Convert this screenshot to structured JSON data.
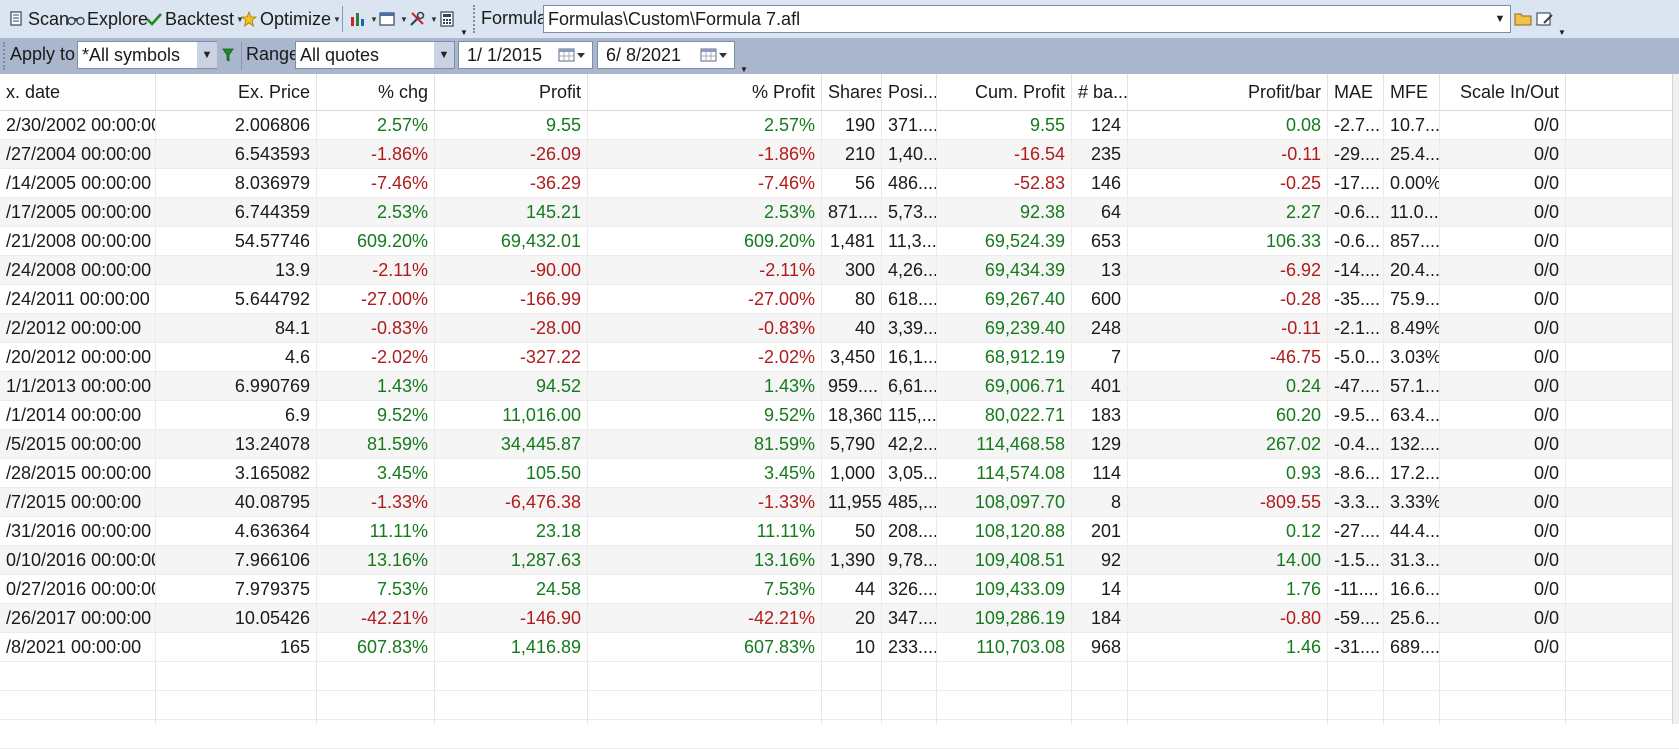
{
  "toolbar": {
    "scan": "Scan",
    "explore": "Explore",
    "backtest": "Backtest",
    "optimize": "Optimize",
    "formula_label": "Formula",
    "formula_path": "Formulas\\Custom\\Formula 7.afl"
  },
  "filters": {
    "apply_to_label": "Apply to",
    "apply_to_value": "*All symbols",
    "range_label": "Range",
    "range_value": "All quotes",
    "from_date": "1/  1/2015",
    "to_date": "6/  8/2021"
  },
  "columns": [
    "x. date",
    "Ex. Price",
    "% chg",
    "Profit",
    "% Profit",
    "Shares",
    "Posi...",
    "Cum. Profit",
    "# ba...",
    "Profit/bar",
    "MAE",
    "MFE",
    "Scale In/Out"
  ],
  "rows": [
    [
      "2/30/2002 00:00:00",
      "2.006806",
      "2.57%",
      "9.55",
      "2.57%",
      "190",
      "371....",
      "9.55",
      "124",
      "0.08",
      "-2.7...",
      "10.7...",
      "0/0"
    ],
    [
      "/27/2004 00:00:00",
      "6.543593",
      "-1.86%",
      "-26.09",
      "-1.86%",
      "210",
      "1,40...",
      "-16.54",
      "235",
      "-0.11",
      "-29....",
      "25.4...",
      "0/0"
    ],
    [
      "/14/2005 00:00:00",
      "8.036979",
      "-7.46%",
      "-36.29",
      "-7.46%",
      "56",
      "486....",
      "-52.83",
      "146",
      "-0.25",
      "-17....",
      "0.00%",
      "0/0"
    ],
    [
      "/17/2005 00:00:00",
      "6.744359",
      "2.53%",
      "145.21",
      "2.53%",
      "871....",
      "5,73...",
      "92.38",
      "64",
      "2.27",
      "-0.6...",
      "11.0...",
      "0/0"
    ],
    [
      "/21/2008 00:00:00",
      "54.57746",
      "609.20%",
      "69,432.01",
      "609.20%",
      "1,481",
      "11,3...",
      "69,524.39",
      "653",
      "106.33",
      "-0.6...",
      "857....",
      "0/0"
    ],
    [
      "/24/2008 00:00:00",
      "13.9",
      "-2.11%",
      "-90.00",
      "-2.11%",
      "300",
      "4,26...",
      "69,434.39",
      "13",
      "-6.92",
      "-14....",
      "20.4...",
      "0/0"
    ],
    [
      "/24/2011 00:00:00",
      "5.644792",
      "-27.00%",
      "-166.99",
      "-27.00%",
      "80",
      "618....",
      "69,267.40",
      "600",
      "-0.28",
      "-35....",
      "75.9...",
      "0/0"
    ],
    [
      "/2/2012 00:00:00",
      "84.1",
      "-0.83%",
      "-28.00",
      "-0.83%",
      "40",
      "3,39...",
      "69,239.40",
      "248",
      "-0.11",
      "-2.1...",
      "8.49%",
      "0/0"
    ],
    [
      "/20/2012 00:00:00",
      "4.6",
      "-2.02%",
      "-327.22",
      "-2.02%",
      "3,450",
      "16,1...",
      "68,912.19",
      "7",
      "-46.75",
      "-5.0...",
      "3.03%",
      "0/0"
    ],
    [
      "1/1/2013 00:00:00",
      "6.990769",
      "1.43%",
      "94.52",
      "1.43%",
      "959....",
      "6,61...",
      "69,006.71",
      "401",
      "0.24",
      "-47....",
      "57.1...",
      "0/0"
    ],
    [
      "/1/2014 00:00:00",
      "6.9",
      "9.52%",
      "11,016.00",
      "9.52%",
      "18,360",
      "115,...",
      "80,022.71",
      "183",
      "60.20",
      "-9.5...",
      "63.4...",
      "0/0"
    ],
    [
      "/5/2015 00:00:00",
      "13.24078",
      "81.59%",
      "34,445.87",
      "81.59%",
      "5,790",
      "42,2...",
      "114,468.58",
      "129",
      "267.02",
      "-0.4...",
      "132....",
      "0/0"
    ],
    [
      "/28/2015 00:00:00",
      "3.165082",
      "3.45%",
      "105.50",
      "3.45%",
      "1,000",
      "3,05...",
      "114,574.08",
      "114",
      "0.93",
      "-8.6...",
      "17.2...",
      "0/0"
    ],
    [
      "/7/2015 00:00:00",
      "40.08795",
      "-1.33%",
      "-6,476.38",
      "-1.33%",
      "11,955",
      "485,...",
      "108,097.70",
      "8",
      "-809.55",
      "-3.3...",
      "3.33%",
      "0/0"
    ],
    [
      "/31/2016 00:00:00",
      "4.636364",
      "11.11%",
      "23.18",
      "11.11%",
      "50",
      "208....",
      "108,120.88",
      "201",
      "0.12",
      "-27....",
      "44.4...",
      "0/0"
    ],
    [
      "0/10/2016 00:00:00",
      "7.966106",
      "13.16%",
      "1,287.63",
      "13.16%",
      "1,390",
      "9,78...",
      "109,408.51",
      "92",
      "14.00",
      "-1.5...",
      "31.3...",
      "0/0"
    ],
    [
      "0/27/2016 00:00:00",
      "7.979375",
      "7.53%",
      "24.58",
      "7.53%",
      "44",
      "326....",
      "109,433.09",
      "14",
      "1.76",
      "-11....",
      "16.6...",
      "0/0"
    ],
    [
      "/26/2017 00:00:00",
      "10.05426",
      "-42.21%",
      "-146.90",
      "-42.21%",
      "20",
      "347....",
      "109,286.19",
      "184",
      "-0.80",
      "-59....",
      "25.6...",
      "0/0"
    ],
    [
      "/8/2021 00:00:00",
      "165",
      "607.83%",
      "1,416.89",
      "607.83%",
      "10",
      "233....",
      "110,703.08",
      "968",
      "1.46",
      "-31....",
      "689....",
      "0/0"
    ]
  ],
  "colors": {
    "positive": "#157a1c",
    "negative": "#b01c1c"
  }
}
